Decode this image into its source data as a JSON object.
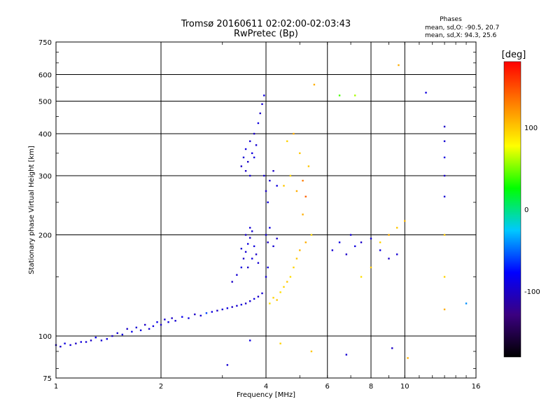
{
  "chart_data": {
    "type": "scatter",
    "title": "Tromsø 20160611 02:02:00-02:03:43",
    "subtitle": "RwPretec (Bp)",
    "xlabel": "Frequency [MHz]",
    "ylabel": "Stationary phase Virtual Height [km]",
    "x_scale": "log",
    "y_scale": "log",
    "xlim": [
      1,
      16
    ],
    "ylim": [
      75,
      750
    ],
    "x_ticks": [
      1,
      2,
      4,
      6,
      8,
      10,
      16
    ],
    "x_tick_labels": [
      "1",
      "2",
      "4",
      "6",
      "8",
      "10",
      "16"
    ],
    "y_ticks": [
      75,
      100,
      200,
      300,
      400,
      500,
      600,
      750
    ],
    "y_tick_labels": [
      "75",
      "100",
      "200",
      "300",
      "400",
      "500",
      "600",
      "750"
    ],
    "grid": true,
    "stats": {
      "title": "Phases",
      "line1": "mean, sd,O: -90.5, 20.7",
      "line2": "mean, sd,X:  94.3, 25.6"
    },
    "colorbar": {
      "label": "[deg]",
      "range": [
        -180,
        180
      ],
      "ticks": [
        100,
        0,
        -100
      ],
      "tick_labels": [
        "100",
        "0",
        "-100"
      ],
      "colors": [
        "#000000",
        "#3b0080",
        "#0000ff",
        "#00c8ff",
        "#00ff00",
        "#ffff00",
        "#ff8000",
        "#ff0000"
      ]
    },
    "series": [
      {
        "points": [
          [
            1.0,
            94,
            -95
          ],
          [
            1.03,
            93,
            -100
          ],
          [
            1.06,
            95,
            -90
          ],
          [
            1.1,
            94,
            -95
          ],
          [
            1.14,
            95,
            -100
          ],
          [
            1.18,
            96,
            -90
          ],
          [
            1.22,
            96,
            -95
          ],
          [
            1.26,
            97,
            -100
          ],
          [
            1.3,
            99,
            -85
          ],
          [
            1.35,
            97,
            -95
          ],
          [
            1.4,
            98,
            -90
          ],
          [
            1.45,
            100,
            -100
          ],
          [
            1.5,
            102,
            -95
          ],
          [
            1.55,
            101,
            -90
          ],
          [
            1.6,
            105,
            -100
          ],
          [
            1.65,
            103,
            -85
          ],
          [
            1.7,
            106,
            -95
          ],
          [
            1.75,
            104,
            -90
          ],
          [
            1.8,
            108,
            -100
          ],
          [
            1.85,
            105,
            -95
          ],
          [
            1.9,
            107,
            -90
          ],
          [
            1.95,
            110,
            -85
          ],
          [
            2.0,
            108,
            -100
          ],
          [
            2.05,
            112,
            -95
          ],
          [
            2.1,
            110,
            -90
          ],
          [
            2.15,
            113,
            -100
          ],
          [
            2.2,
            111,
            -95
          ],
          [
            2.3,
            114,
            -85
          ],
          [
            2.4,
            113,
            -90
          ],
          [
            2.5,
            116,
            -100
          ],
          [
            2.6,
            115,
            -95
          ],
          [
            2.7,
            117,
            -60
          ],
          [
            2.8,
            118,
            -90
          ],
          [
            2.9,
            119,
            -100
          ],
          [
            3.0,
            120,
            -95
          ],
          [
            3.1,
            121,
            -90
          ],
          [
            3.2,
            122,
            -100
          ],
          [
            3.3,
            123,
            -95
          ],
          [
            3.4,
            124,
            -90
          ],
          [
            3.5,
            125,
            -100
          ],
          [
            3.6,
            127,
            -95
          ],
          [
            3.7,
            129,
            -90
          ],
          [
            3.8,
            131,
            -100
          ],
          [
            3.9,
            134,
            -95
          ],
          [
            3.2,
            145,
            -100
          ],
          [
            3.3,
            152,
            -95
          ],
          [
            3.4,
            160,
            -90
          ],
          [
            3.45,
            170,
            -100
          ],
          [
            3.5,
            178,
            -95
          ],
          [
            3.55,
            188,
            -90
          ],
          [
            3.6,
            196,
            -100
          ],
          [
            3.65,
            205,
            -95
          ],
          [
            3.7,
            185,
            -90
          ],
          [
            3.75,
            175,
            -100
          ],
          [
            3.8,
            165,
            -95
          ],
          [
            3.55,
            160,
            -100
          ],
          [
            3.65,
            170,
            -90
          ],
          [
            3.4,
            182,
            -95
          ],
          [
            3.5,
            200,
            -100
          ],
          [
            3.6,
            210,
            -95
          ],
          [
            3.4,
            320,
            -100
          ],
          [
            3.45,
            340,
            -95
          ],
          [
            3.5,
            360,
            -90
          ],
          [
            3.55,
            330,
            -100
          ],
          [
            3.6,
            380,
            -95
          ],
          [
            3.65,
            350,
            -90
          ],
          [
            3.7,
            400,
            -100
          ],
          [
            3.75,
            370,
            -95
          ],
          [
            3.8,
            430,
            -90
          ],
          [
            3.85,
            460,
            -100
          ],
          [
            3.9,
            490,
            -95
          ],
          [
            3.95,
            520,
            -90
          ],
          [
            3.5,
            310,
            -100
          ],
          [
            3.6,
            300,
            -95
          ],
          [
            3.7,
            340,
            -90
          ],
          [
            3.95,
            300,
            -95
          ],
          [
            4.0,
            270,
            -100
          ],
          [
            4.05,
            250,
            -90
          ],
          [
            4.1,
            290,
            -95
          ],
          [
            4.2,
            310,
            -100
          ],
          [
            4.3,
            280,
            -90
          ],
          [
            4.0,
            200,
            -95
          ],
          [
            4.05,
            190,
            -100
          ],
          [
            4.1,
            210,
            -90
          ],
          [
            4.2,
            185,
            -95
          ],
          [
            4.3,
            195,
            -100
          ],
          [
            4.0,
            150,
            -95
          ],
          [
            4.05,
            160,
            -90
          ],
          [
            4.1,
            125,
            90
          ],
          [
            4.2,
            130,
            95
          ],
          [
            4.3,
            128,
            100
          ],
          [
            4.4,
            135,
            90
          ],
          [
            4.5,
            140,
            95
          ],
          [
            4.6,
            145,
            100
          ],
          [
            4.7,
            150,
            90
          ],
          [
            4.8,
            160,
            95
          ],
          [
            4.9,
            170,
            100
          ],
          [
            5.0,
            180,
            105
          ],
          [
            5.2,
            190,
            110
          ],
          [
            5.4,
            200,
            95
          ],
          [
            4.5,
            280,
            100
          ],
          [
            4.7,
            300,
            95
          ],
          [
            4.9,
            270,
            110
          ],
          [
            5.1,
            290,
            130
          ],
          [
            5.3,
            320,
            100
          ],
          [
            4.6,
            380,
            95
          ],
          [
            4.8,
            400,
            110
          ],
          [
            5.0,
            350,
            100
          ],
          [
            5.2,
            260,
            140
          ],
          [
            5.1,
            230,
            110
          ],
          [
            6.2,
            180,
            -95
          ],
          [
            6.5,
            190,
            -90
          ],
          [
            6.8,
            175,
            -100
          ],
          [
            7.0,
            200,
            -95
          ],
          [
            7.2,
            185,
            -90
          ],
          [
            7.5,
            190,
            -100
          ],
          [
            8.0,
            195,
            -95
          ],
          [
            8.5,
            180,
            -90
          ],
          [
            9.0,
            170,
            -100
          ],
          [
            9.5,
            175,
            -95
          ],
          [
            7.5,
            150,
            90
          ],
          [
            8.0,
            160,
            100
          ],
          [
            8.5,
            190,
            95
          ],
          [
            9.0,
            200,
            110
          ],
          [
            9.5,
            210,
            100
          ],
          [
            10.0,
            220,
            105
          ],
          [
            13.0,
            420,
            -100
          ],
          [
            13.0,
            380,
            -95
          ],
          [
            13.0,
            340,
            -90
          ],
          [
            13.0,
            300,
            -100
          ],
          [
            13.0,
            260,
            -95
          ],
          [
            13.0,
            200,
            100
          ],
          [
            13.0,
            150,
            95
          ],
          [
            13.0,
            120,
            110
          ],
          [
            9.6,
            640,
            110
          ],
          [
            11.5,
            530,
            -90
          ],
          [
            7.2,
            520,
            60
          ],
          [
            5.5,
            560,
            110
          ],
          [
            6.5,
            520,
            40
          ],
          [
            15.0,
            125,
            -40
          ],
          [
            3.6,
            97,
            -90
          ],
          [
            4.4,
            95,
            95
          ],
          [
            5.4,
            90,
            100
          ],
          [
            6.8,
            88,
            -95
          ],
          [
            9.2,
            92,
            -100
          ],
          [
            10.2,
            86,
            110
          ],
          [
            3.1,
            82,
            -95
          ]
        ]
      }
    ]
  }
}
